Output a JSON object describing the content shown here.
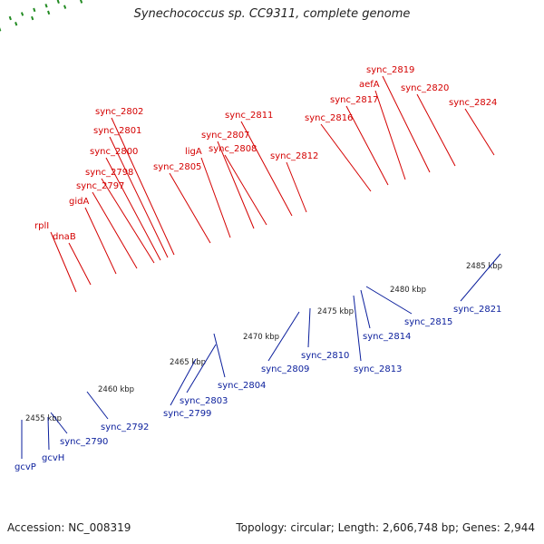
{
  "title": "Synechococcus sp. CC9311, complete genome",
  "footer": {
    "accession": "Accession: NC_008319",
    "summary": "Topology: circular; Length: 2,606,748 bp; Genes: 2,944"
  },
  "colors": {
    "backbone": "#8c8c8c",
    "forward_gene": "#ff0000",
    "reverse_gene": "#0000ee",
    "forward_label": "#d40000",
    "reverse_label": "#0a1e9c",
    "tick": "#228b22"
  },
  "tick_labels": [
    "2455 kbp",
    "2460 kbp",
    "2465 kbp",
    "2470 kbp",
    "2475 kbp",
    "2480 kbp",
    "2485 kbp"
  ],
  "forward_labels": [
    "rplI",
    "dnaB",
    "gidA",
    "sync_2797",
    "sync_2798",
    "sync_2800",
    "sync_2801",
    "sync_2802",
    "sync_2805",
    "ligA",
    "sync_2807",
    "sync_2808",
    "sync_2811",
    "sync_2812",
    "sync_2816",
    "sync_2817",
    "aefA",
    "sync_2819",
    "sync_2820",
    "sync_2824"
  ],
  "reverse_labels": [
    "gcvP",
    "gcvH",
    "sync_2790",
    "sync_2792",
    "sync_2799",
    "sync_2803",
    "sync_2804",
    "sync_2809",
    "sync_2810",
    "sync_2813",
    "sync_2814",
    "sync_2815",
    "sync_2821"
  ]
}
